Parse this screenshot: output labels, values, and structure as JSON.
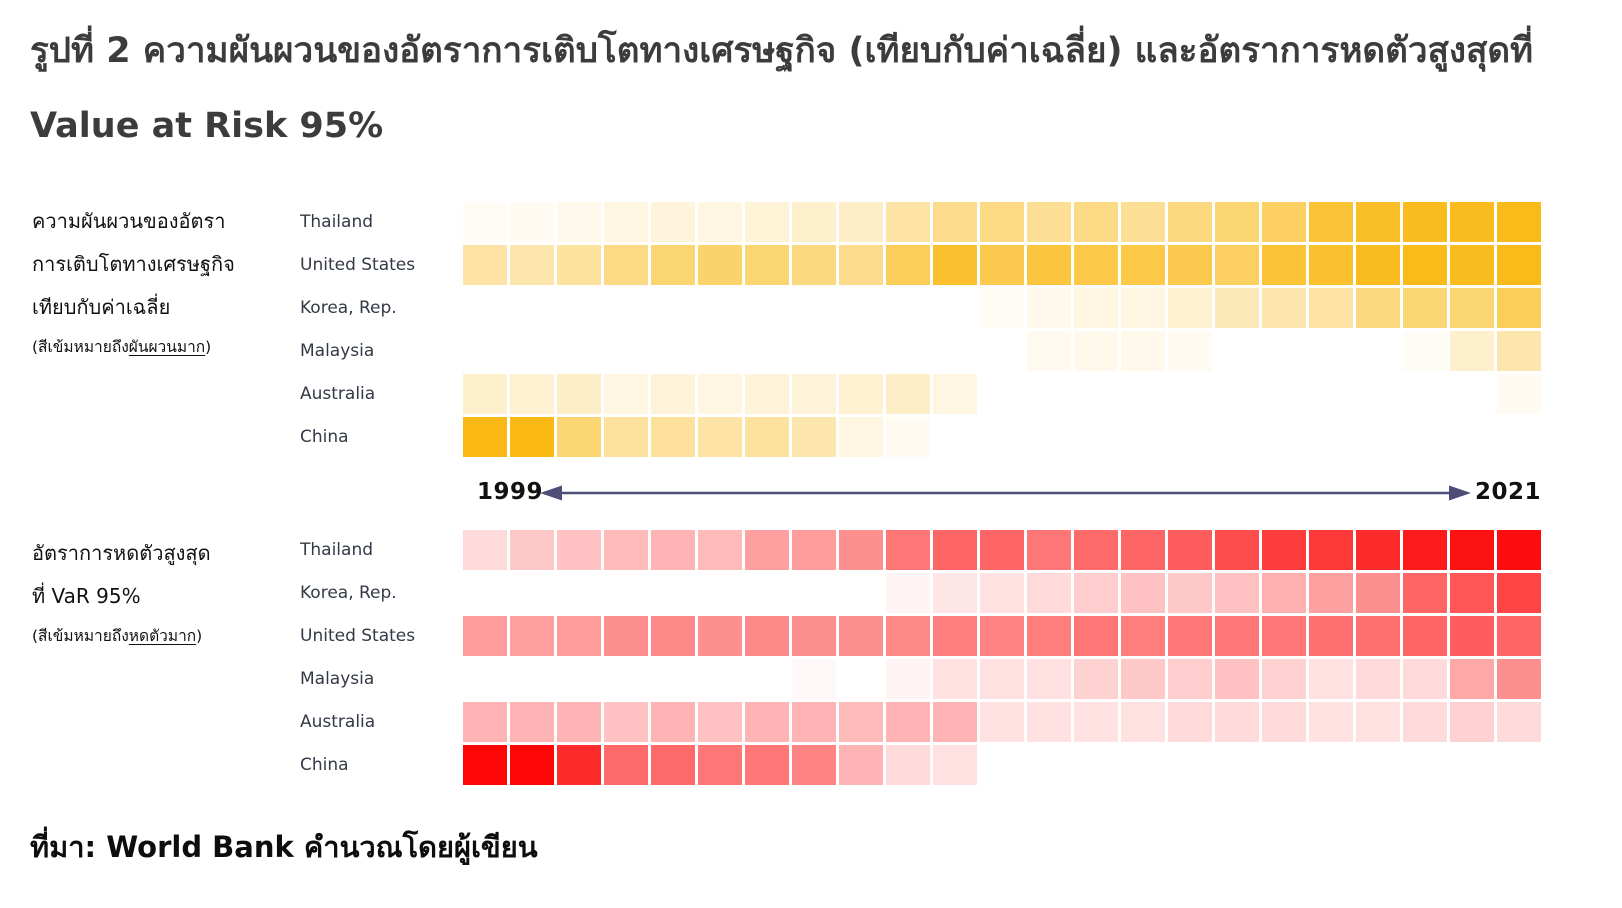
{
  "title": "รูปที่ 2 ความผันผวนของอัตราการเติบโตทางเศรษฐกิจ (เทียบกับค่าเฉลี่ย) และอัตราการหดตัวสูงสุดที่ Value at Risk 95%",
  "source": "ที่มา: World Bank คำนวณโดยผู้เขียน",
  "timeline": {
    "start_year": "1999",
    "end_year": "2021",
    "arrow_color": "#4d4d78"
  },
  "chart_data": [
    {
      "type": "heatmap",
      "id": "volatility",
      "description_lines": [
        "ความผันผวนของอัตรา",
        "การเติบโตทางเศรษฐกิจ",
        "เทียบกับค่าเฉลี่ย"
      ],
      "note_prefix": "(สีเข้มหมายถึง",
      "note_underline": "ผันผวนมาก",
      "note_suffix": ")",
      "base_color": "#F9B200",
      "min_color": "#FFFFFF",
      "years": {
        "start": 1999,
        "end": 2021,
        "n_columns": 23
      },
      "legend": "darker = more volatile (intensity 0–1 read from cell shading)",
      "rows": [
        {
          "name": "Thailand",
          "values": [
            0.04,
            0.05,
            0.08,
            0.12,
            0.14,
            0.12,
            0.16,
            0.2,
            0.22,
            0.35,
            0.45,
            0.48,
            0.42,
            0.48,
            0.42,
            0.5,
            0.55,
            0.62,
            0.78,
            0.85,
            0.88,
            0.88,
            0.9
          ]
        },
        {
          "name": "United States",
          "values": [
            0.35,
            0.32,
            0.38,
            0.48,
            0.55,
            0.58,
            0.55,
            0.5,
            0.45,
            0.65,
            0.82,
            0.7,
            0.75,
            0.72,
            0.72,
            0.7,
            0.62,
            0.78,
            0.82,
            0.88,
            0.9,
            0.88,
            0.9
          ]
        },
        {
          "name": "Korea, Rep.",
          "values": [
            0,
            0,
            0,
            0,
            0,
            0,
            0,
            0,
            0,
            0,
            0,
            0.04,
            0.08,
            0.12,
            0.12,
            0.18,
            0.28,
            0.32,
            0.35,
            0.5,
            0.55,
            0.55,
            0.65
          ]
        },
        {
          "name": "Malaysia",
          "values": [
            0,
            0,
            0,
            0,
            0,
            0,
            0,
            0,
            0,
            0,
            0,
            0,
            0.06,
            0.08,
            0.08,
            0.05,
            0,
            0,
            0,
            0,
            0.04,
            0.2,
            0.32
          ]
        },
        {
          "name": "Australia",
          "values": [
            0.2,
            0.18,
            0.22,
            0.12,
            0.15,
            0.12,
            0.15,
            0.15,
            0.18,
            0.22,
            0.12,
            0,
            0,
            0,
            0,
            0,
            0,
            0,
            0,
            0,
            0,
            0,
            0.05
          ]
        },
        {
          "name": "China",
          "values": [
            0.92,
            0.92,
            0.55,
            0.38,
            0.4,
            0.35,
            0.38,
            0.32,
            0.12,
            0.05,
            0,
            0,
            0,
            0,
            0,
            0,
            0,
            0,
            0,
            0,
            0,
            0,
            0
          ]
        }
      ]
    },
    {
      "type": "heatmap",
      "id": "var95-contraction",
      "description_lines": [
        "อัตราการหดตัวสูงสุด",
        "ที่ VaR 95%"
      ],
      "note_prefix": "(สีเข้มหมายถึง",
      "note_underline": "หดตัวมาก",
      "note_suffix": ")",
      "base_color": "#FD0606",
      "min_color": "#FFFFFF",
      "years": {
        "start": 1999,
        "end": 2021,
        "n_columns": 23
      },
      "legend": "darker = larger contraction (intensity 0–1 read from cell shading)",
      "rows": [
        {
          "name": "Thailand",
          "values": [
            0.15,
            0.22,
            0.25,
            0.28,
            0.3,
            0.28,
            0.38,
            0.4,
            0.45,
            0.55,
            0.62,
            0.62,
            0.55,
            0.6,
            0.62,
            0.65,
            0.72,
            0.78,
            0.8,
            0.85,
            0.92,
            0.95,
            0.97
          ]
        },
        {
          "name": "Korea, Rep.",
          "values": [
            0,
            0,
            0,
            0,
            0,
            0,
            0,
            0,
            0,
            0.05,
            0.1,
            0.12,
            0.15,
            0.2,
            0.25,
            0.22,
            0.25,
            0.32,
            0.38,
            0.45,
            0.62,
            0.68,
            0.75
          ]
        },
        {
          "name": "United States",
          "values": [
            0.4,
            0.38,
            0.4,
            0.45,
            0.48,
            0.45,
            0.48,
            0.45,
            0.45,
            0.48,
            0.52,
            0.5,
            0.52,
            0.55,
            0.52,
            0.55,
            0.55,
            0.55,
            0.58,
            0.58,
            0.62,
            0.65,
            0.62
          ]
        },
        {
          "name": "Malaysia",
          "values": [
            0,
            0,
            0,
            0,
            0,
            0,
            0,
            0.03,
            0,
            0.05,
            0.12,
            0.12,
            0.12,
            0.18,
            0.22,
            0.2,
            0.25,
            0.18,
            0.12,
            0.15,
            0.15,
            0.35,
            0.45
          ]
        },
        {
          "name": "Australia",
          "values": [
            0.3,
            0.3,
            0.3,
            0.25,
            0.3,
            0.25,
            0.3,
            0.3,
            0.28,
            0.3,
            0.3,
            0.12,
            0.12,
            0.12,
            0.12,
            0.15,
            0.15,
            0.15,
            0.12,
            0.12,
            0.15,
            0.18,
            0.15
          ]
        },
        {
          "name": "China",
          "values": [
            1.0,
            1.0,
            0.85,
            0.6,
            0.6,
            0.55,
            0.55,
            0.5,
            0.3,
            0.15,
            0.12,
            0,
            0,
            0,
            0,
            0,
            0,
            0,
            0,
            0,
            0,
            0,
            0
          ]
        }
      ]
    }
  ]
}
